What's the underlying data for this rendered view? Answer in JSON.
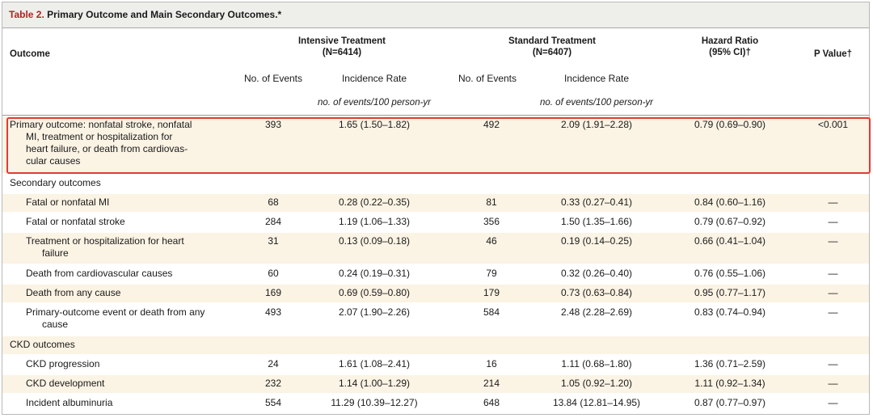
{
  "table": {
    "title_num": "Table 2.",
    "title_text": "Primary Outcome and Main Secondary Outcomes.*",
    "headers": {
      "outcome": "Outcome",
      "intensive": "Intensive Treatment",
      "intensive_n": "(N=6414)",
      "standard": "Standard Treatment",
      "standard_n": "(N=6407)",
      "hazard": "Hazard Ratio",
      "hazard_ci": "(95% CI)†",
      "pvalue": "P Value†",
      "events": "No. of Events",
      "rate": "Incidence Rate",
      "rate_unit": "no. of events/100 person-yr"
    },
    "rows": [
      {
        "label1": "Primary outcome: nonfatal stroke, nonfatal",
        "label2": "MI, treatment or hospitalization for",
        "label3": "heart failure, or death from cardiovas-",
        "label4": "cular causes",
        "ie": "393",
        "ir": "1.65 (1.50–1.82)",
        "se": "492",
        "sr": "2.09 (1.91–2.28)",
        "hr": "0.79 (0.69–0.90)",
        "p": "<0.001"
      },
      {
        "label1": "Secondary outcomes"
      },
      {
        "label1": "Fatal or nonfatal MI",
        "ie": "68",
        "ir": "0.28 (0.22–0.35)",
        "se": "81",
        "sr": "0.33 (0.27–0.41)",
        "hr": "0.84 (0.60–1.16)",
        "p": "—"
      },
      {
        "label1": "Fatal or nonfatal stroke",
        "ie": "284",
        "ir": "1.19 (1.06–1.33)",
        "se": "356",
        "sr": "1.50 (1.35–1.66)",
        "hr": "0.79 (0.67–0.92)",
        "p": "—"
      },
      {
        "label1": "Treatment or hospitalization for heart",
        "label2": "failure",
        "ie": "31",
        "ir": "0.13 (0.09–0.18)",
        "se": "46",
        "sr": "0.19 (0.14–0.25)",
        "hr": "0.66 (0.41–1.04)",
        "p": "—"
      },
      {
        "label1": "Death from cardiovascular causes",
        "ie": "60",
        "ir": "0.24 (0.19–0.31)",
        "se": "79",
        "sr": "0.32 (0.26–0.40)",
        "hr": "0.76 (0.55–1.06)",
        "p": "—"
      },
      {
        "label1": "Death from any cause",
        "ie": "169",
        "ir": "0.69 (0.59–0.80)",
        "se": "179",
        "sr": "0.73 (0.63–0.84)",
        "hr": "0.95 (0.77–1.17)",
        "p": "—"
      },
      {
        "label1": "Primary-outcome event or death from any",
        "label2": "cause",
        "ie": "493",
        "ir": "2.07 (1.90–2.26)",
        "se": "584",
        "sr": "2.48 (2.28–2.69)",
        "hr": "0.83 (0.74–0.94)",
        "p": "—"
      },
      {
        "label1": "CKD outcomes"
      },
      {
        "label1": "CKD progression",
        "ie": "24",
        "ir": "1.61 (1.08–2.41)",
        "se": "16",
        "sr": "1.11 (0.68–1.80)",
        "hr": "1.36 (0.71–2.59)",
        "p": "—"
      },
      {
        "label1": "CKD development",
        "ie": "232",
        "ir": "1.14 (1.00–1.29)",
        "se": "214",
        "sr": "1.05 (0.92–1.20)",
        "hr": "1.11 (0.92–1.34)",
        "p": "—"
      },
      {
        "label1": "Incident albuminuria",
        "ie": "554",
        "ir": "11.29 (10.39–12.27)",
        "se": "648",
        "sr": "13.84 (12.81–14.95)",
        "hr": "0.87 (0.77–0.97)",
        "p": "—"
      }
    ]
  }
}
